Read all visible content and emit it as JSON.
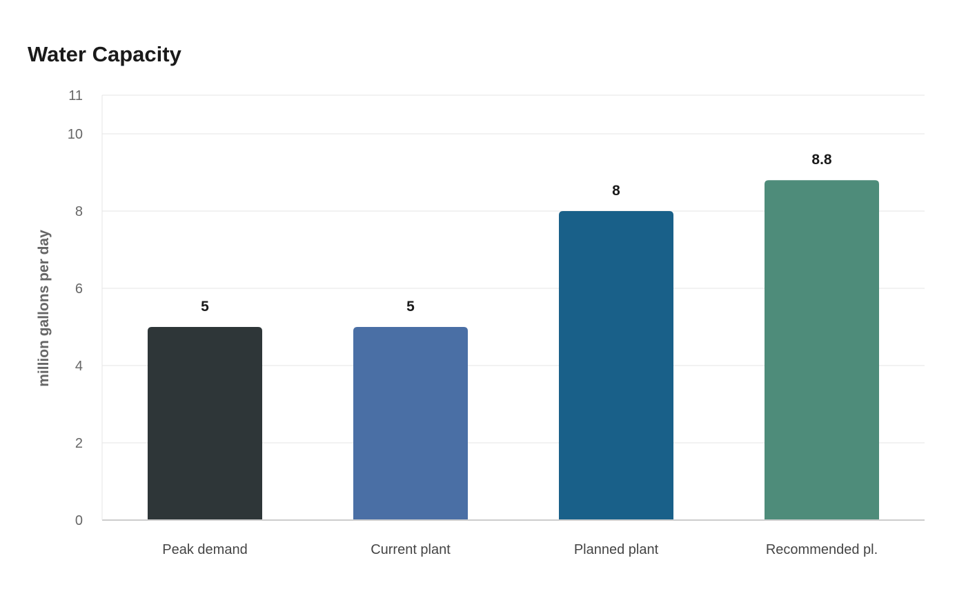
{
  "chart_data": {
    "type": "bar",
    "title": "Water Capacity",
    "xlabel": "",
    "ylabel": "million gallons per day",
    "categories": [
      "Peak demand",
      "Current plant",
      "Planned plant",
      "Recommended pl."
    ],
    "values": [
      5,
      5,
      8,
      8.8
    ],
    "data_labels": [
      "5",
      "5",
      "8",
      "8.8"
    ],
    "colors": [
      "#2e3638",
      "#4a6fa5",
      "#196089",
      "#4e8c7a"
    ],
    "ylim": [
      0,
      11
    ],
    "yticks": [
      0,
      2,
      4,
      6,
      8,
      10,
      11
    ],
    "grid": true,
    "legend": "none"
  }
}
